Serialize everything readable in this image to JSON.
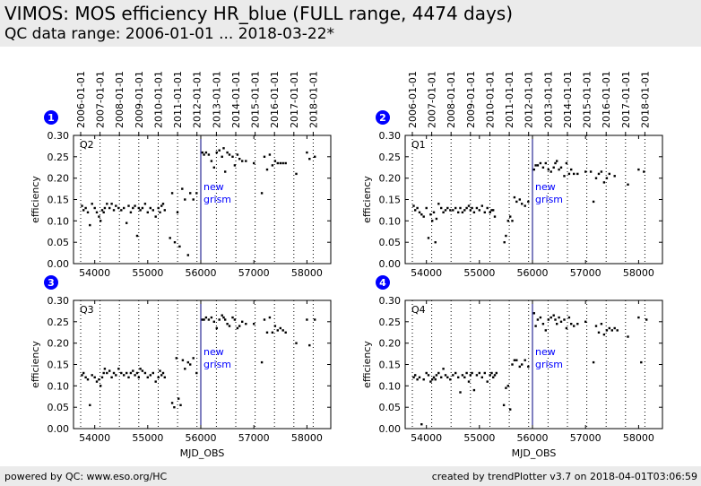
{
  "header": {
    "title": "VIMOS: MOS efficiency HR_blue (FULL range, 4474 days)",
    "subtitle": "QC data range: 2006-01-01 ... 2018-03-22*"
  },
  "footer": {
    "left": "powered by QC: www.eso.org/HC",
    "right": "created by trendPlotter v3.7 on 2018-04-01T03:06:59"
  },
  "colors": {
    "marker": "#000000",
    "badge": "#0000ff",
    "event_line": "#000080",
    "event_text": "#0000ff",
    "header_bg": "#ebebeb"
  },
  "chart_data": [
    {
      "type": "scatter",
      "panel_number": "1",
      "quadrant_label": "Q2",
      "ylabel": "efficiency",
      "xlabel": "",
      "xlim": [
        53600,
        58450
      ],
      "ylim": [
        0,
        0.3
      ],
      "xticks": [
        54000,
        55000,
        56000,
        57000,
        58000
      ],
      "yticks": [
        "0.00",
        "0.05",
        "0.10",
        "0.15",
        "0.20",
        "0.25",
        "0.30"
      ],
      "top_date_ticks": [
        "2006-01-01",
        "2007-01-01",
        "2008-01-01",
        "2009-01-01",
        "2010-01-01",
        "2011-01-01",
        "2012-01-01",
        "2013-01-01",
        "2014-01-01",
        "2015-01-01",
        "2016-01-01",
        "2017-01-01",
        "2018-01-01"
      ],
      "top_date_mjd": [
        53736,
        54101,
        54466,
        54831,
        55197,
        55562,
        55927,
        56293,
        56658,
        57023,
        57388,
        57754,
        58119
      ],
      "event": {
        "x": 56000,
        "label": [
          "new",
          "grism"
        ]
      },
      "series": [
        {
          "x": [
            53760,
            53790,
            53830,
            53870,
            53910,
            53950,
            54000,
            54040,
            54080,
            54110,
            54140,
            54170,
            54190,
            54230,
            54280,
            54320,
            54360,
            54400,
            54450,
            54500,
            54550,
            54600,
            54640,
            54680,
            54720,
            54760,
            54800,
            54830,
            54860,
            54900,
            54950,
            55000,
            55050,
            55100,
            55150,
            55200,
            55230,
            55260,
            55290,
            55320,
            55420,
            55460,
            55510,
            55560,
            55600,
            55650,
            55700,
            55760,
            55800,
            55860,
            55920
          ],
          "y": [
            0.135,
            0.125,
            0.13,
            0.12,
            0.09,
            0.14,
            0.13,
            0.12,
            0.11,
            0.1,
            0.125,
            0.12,
            0.13,
            0.14,
            0.13,
            0.14,
            0.125,
            0.135,
            0.13,
            0.125,
            0.13,
            0.095,
            0.135,
            0.12,
            0.13,
            0.135,
            0.065,
            0.13,
            0.125,
            0.13,
            0.14,
            0.12,
            0.13,
            0.125,
            0.11,
            0.13,
            0.12,
            0.135,
            0.14,
            0.125,
            0.06,
            0.165,
            0.05,
            0.12,
            0.04,
            0.175,
            0.15,
            0.02,
            0.165,
            0.15,
            0.165
          ]
        },
        {
          "x": [
            56030,
            56060,
            56100,
            56150,
            56200,
            56250,
            56300,
            56350,
            56400,
            56430,
            56460,
            56500,
            56540,
            56600,
            56640,
            56690,
            56730,
            56780,
            56850,
            57000,
            57150,
            57200,
            57250,
            57300,
            57350,
            57400,
            57450,
            57500,
            57550,
            57600,
            57800,
            58000,
            58050,
            58150
          ],
          "y": [
            0.26,
            0.255,
            0.26,
            0.255,
            0.24,
            0.225,
            0.26,
            0.265,
            0.25,
            0.27,
            0.215,
            0.26,
            0.255,
            0.25,
            0.23,
            0.255,
            0.245,
            0.24,
            0.24,
            0.235,
            0.165,
            0.25,
            0.22,
            0.255,
            0.23,
            0.24,
            0.235,
            0.235,
            0.235,
            0.235,
            0.21,
            0.26,
            0.245,
            0.25
          ]
        }
      ]
    },
    {
      "type": "scatter",
      "panel_number": "2",
      "quadrant_label": "Q1",
      "ylabel": "efficiency",
      "xlabel": "",
      "xlim": [
        53600,
        58450
      ],
      "ylim": [
        0,
        0.3
      ],
      "xticks": [
        54000,
        55000,
        56000,
        57000,
        58000
      ],
      "yticks": [
        "0.00",
        "0.05",
        "0.10",
        "0.15",
        "0.20",
        "0.25",
        "0.30"
      ],
      "top_date_ticks": [
        "2006-01-01",
        "2007-01-01",
        "2008-01-01",
        "2009-01-01",
        "2010-01-01",
        "2011-01-01",
        "2012-01-01",
        "2013-01-01",
        "2014-01-01",
        "2015-01-01",
        "2016-01-01",
        "2017-01-01",
        "2018-01-01"
      ],
      "top_date_mjd": [
        53736,
        54101,
        54466,
        54831,
        55197,
        55562,
        55927,
        56293,
        56658,
        57023,
        57388,
        57754,
        58119
      ],
      "event": {
        "x": 56000,
        "label": [
          "new",
          "grism"
        ]
      },
      "series": [
        {
          "x": [
            53760,
            53790,
            53830,
            53870,
            53910,
            53950,
            54000,
            54040,
            54080,
            54110,
            54140,
            54170,
            54190,
            54230,
            54280,
            54320,
            54360,
            54400,
            54450,
            54500,
            54550,
            54600,
            54640,
            54680,
            54720,
            54760,
            54800,
            54830,
            54860,
            54900,
            54950,
            55000,
            55050,
            55100,
            55150,
            55200,
            55230,
            55260,
            55290,
            55470,
            55500,
            55540,
            55580,
            55620,
            55660,
            55700,
            55760,
            55800,
            55860,
            55920
          ],
          "y": [
            0.135,
            0.125,
            0.13,
            0.12,
            0.115,
            0.11,
            0.13,
            0.06,
            0.115,
            0.1,
            0.12,
            0.05,
            0.105,
            0.14,
            0.13,
            0.12,
            0.125,
            0.13,
            0.125,
            0.125,
            0.13,
            0.12,
            0.13,
            0.12,
            0.125,
            0.13,
            0.135,
            0.125,
            0.13,
            0.12,
            0.13,
            0.125,
            0.135,
            0.12,
            0.13,
            0.12,
            0.125,
            0.125,
            0.11,
            0.05,
            0.065,
            0.1,
            0.11,
            0.1,
            0.155,
            0.145,
            0.15,
            0.14,
            0.135,
            0.145
          ]
        },
        {
          "x": [
            56030,
            56060,
            56100,
            56150,
            56200,
            56250,
            56300,
            56350,
            56400,
            56430,
            56460,
            56500,
            56540,
            56600,
            56640,
            56690,
            56730,
            56780,
            56850,
            57000,
            57100,
            57150,
            57200,
            57250,
            57300,
            57350,
            57400,
            57450,
            57550,
            57800,
            58000,
            58100
          ],
          "y": [
            0.22,
            0.23,
            0.23,
            0.235,
            0.225,
            0.235,
            0.22,
            0.215,
            0.225,
            0.235,
            0.24,
            0.22,
            0.225,
            0.205,
            0.235,
            0.21,
            0.22,
            0.21,
            0.21,
            0.215,
            0.215,
            0.145,
            0.2,
            0.21,
            0.215,
            0.19,
            0.2,
            0.21,
            0.205,
            0.185,
            0.22,
            0.215
          ]
        }
      ]
    },
    {
      "type": "scatter",
      "panel_number": "3",
      "quadrant_label": "Q3",
      "ylabel": "efficiency",
      "xlabel": "MJD_OBS",
      "xlim": [
        53600,
        58450
      ],
      "ylim": [
        0,
        0.3
      ],
      "xticks": [
        54000,
        55000,
        56000,
        57000,
        58000
      ],
      "yticks": [
        "0.00",
        "0.05",
        "0.10",
        "0.15",
        "0.20",
        "0.25",
        "0.30"
      ],
      "top_date_ticks": [],
      "top_date_mjd": [
        53736,
        54101,
        54466,
        54831,
        55197,
        55562,
        55927,
        56293,
        56658,
        57023,
        57388,
        57754,
        58119
      ],
      "event": {
        "x": 56000,
        "label": [
          "new",
          "grism"
        ]
      },
      "series": [
        {
          "x": [
            53760,
            53790,
            53830,
            53870,
            53910,
            53950,
            54000,
            54040,
            54080,
            54110,
            54140,
            54170,
            54190,
            54230,
            54280,
            54320,
            54360,
            54400,
            54450,
            54500,
            54550,
            54600,
            54640,
            54680,
            54720,
            54760,
            54800,
            54830,
            54860,
            54900,
            54950,
            55000,
            55050,
            55100,
            55150,
            55200,
            55230,
            55260,
            55290,
            55320,
            55460,
            55500,
            55540,
            55580,
            55620,
            55660,
            55700,
            55760,
            55800,
            55860,
            55920
          ],
          "y": [
            0.125,
            0.13,
            0.12,
            0.115,
            0.055,
            0.125,
            0.12,
            0.11,
            0.115,
            0.1,
            0.12,
            0.13,
            0.14,
            0.13,
            0.135,
            0.12,
            0.13,
            0.125,
            0.14,
            0.13,
            0.125,
            0.13,
            0.12,
            0.13,
            0.135,
            0.125,
            0.13,
            0.12,
            0.14,
            0.135,
            0.13,
            0.12,
            0.125,
            0.13,
            0.11,
            0.12,
            0.135,
            0.125,
            0.13,
            0.12,
            0.06,
            0.05,
            0.165,
            0.07,
            0.055,
            0.16,
            0.14,
            0.155,
            0.15,
            0.165,
            0.13
          ]
        },
        {
          "x": [
            56030,
            56060,
            56100,
            56150,
            56200,
            56250,
            56300,
            56350,
            56400,
            56430,
            56460,
            56500,
            56540,
            56600,
            56640,
            56690,
            56730,
            56780,
            56850,
            57000,
            57150,
            57200,
            57250,
            57300,
            57350,
            57400,
            57450,
            57500,
            57550,
            57600,
            57800,
            58000,
            58050,
            58150
          ],
          "y": [
            0.255,
            0.255,
            0.26,
            0.255,
            0.26,
            0.25,
            0.235,
            0.255,
            0.265,
            0.26,
            0.255,
            0.245,
            0.24,
            0.26,
            0.255,
            0.235,
            0.24,
            0.25,
            0.245,
            0.245,
            0.155,
            0.255,
            0.225,
            0.26,
            0.225,
            0.24,
            0.23,
            0.235,
            0.23,
            0.225,
            0.2,
            0.255,
            0.195,
            0.255
          ]
        }
      ]
    },
    {
      "type": "scatter",
      "panel_number": "4",
      "quadrant_label": "Q4",
      "ylabel": "efficiency",
      "xlabel": "MJD_OBS",
      "xlim": [
        53600,
        58450
      ],
      "ylim": [
        0,
        0.3
      ],
      "xticks": [
        54000,
        55000,
        56000,
        57000,
        58000
      ],
      "yticks": [
        "0.00",
        "0.05",
        "0.10",
        "0.15",
        "0.20",
        "0.25",
        "0.30"
      ],
      "top_date_ticks": [],
      "top_date_mjd": [
        53736,
        54101,
        54466,
        54831,
        55197,
        55562,
        55927,
        56293,
        56658,
        57023,
        57388,
        57754,
        58119
      ],
      "event": {
        "x": 56000,
        "label": [
          "new",
          "grism"
        ]
      },
      "series": [
        {
          "x": [
            53760,
            53790,
            53830,
            53870,
            53910,
            53950,
            54000,
            54040,
            54080,
            54110,
            54140,
            54170,
            54190,
            54230,
            54280,
            54320,
            54360,
            54400,
            54450,
            54500,
            54550,
            54600,
            54640,
            54680,
            54720,
            54760,
            54800,
            54830,
            54860,
            54900,
            54950,
            55000,
            55050,
            55100,
            55150,
            55200,
            55230,
            55260,
            55290,
            55320,
            55460,
            55500,
            55540,
            55580,
            55620,
            55660,
            55700,
            55760,
            55800,
            55860,
            55920
          ],
          "y": [
            0.12,
            0.125,
            0.115,
            0.12,
            0.01,
            0.115,
            0.13,
            0.125,
            0.11,
            0.115,
            0.12,
            0.115,
            0.125,
            0.13,
            0.12,
            0.14,
            0.125,
            0.12,
            0.115,
            0.125,
            0.13,
            0.12,
            0.085,
            0.125,
            0.12,
            0.13,
            0.11,
            0.125,
            0.13,
            0.09,
            0.125,
            0.13,
            0.12,
            0.13,
            0.11,
            0.125,
            0.13,
            0.12,
            0.125,
            0.13,
            0.055,
            0.095,
            0.1,
            0.045,
            0.15,
            0.16,
            0.16,
            0.145,
            0.15,
            0.16,
            0.145
          ]
        },
        {
          "x": [
            56030,
            56060,
            56100,
            56150,
            56200,
            56250,
            56300,
            56350,
            56400,
            56430,
            56460,
            56500,
            56540,
            56600,
            56640,
            56690,
            56730,
            56780,
            56850,
            57000,
            57150,
            57200,
            57250,
            57300,
            57350,
            57400,
            57450,
            57500,
            57550,
            57600,
            57800,
            58000,
            58050,
            58150
          ],
          "y": [
            0.27,
            0.24,
            0.255,
            0.26,
            0.245,
            0.23,
            0.255,
            0.26,
            0.265,
            0.255,
            0.245,
            0.26,
            0.25,
            0.255,
            0.235,
            0.26,
            0.245,
            0.24,
            0.245,
            0.25,
            0.155,
            0.24,
            0.225,
            0.245,
            0.22,
            0.23,
            0.235,
            0.23,
            0.235,
            0.23,
            0.215,
            0.26,
            0.155,
            0.255
          ]
        }
      ]
    }
  ]
}
